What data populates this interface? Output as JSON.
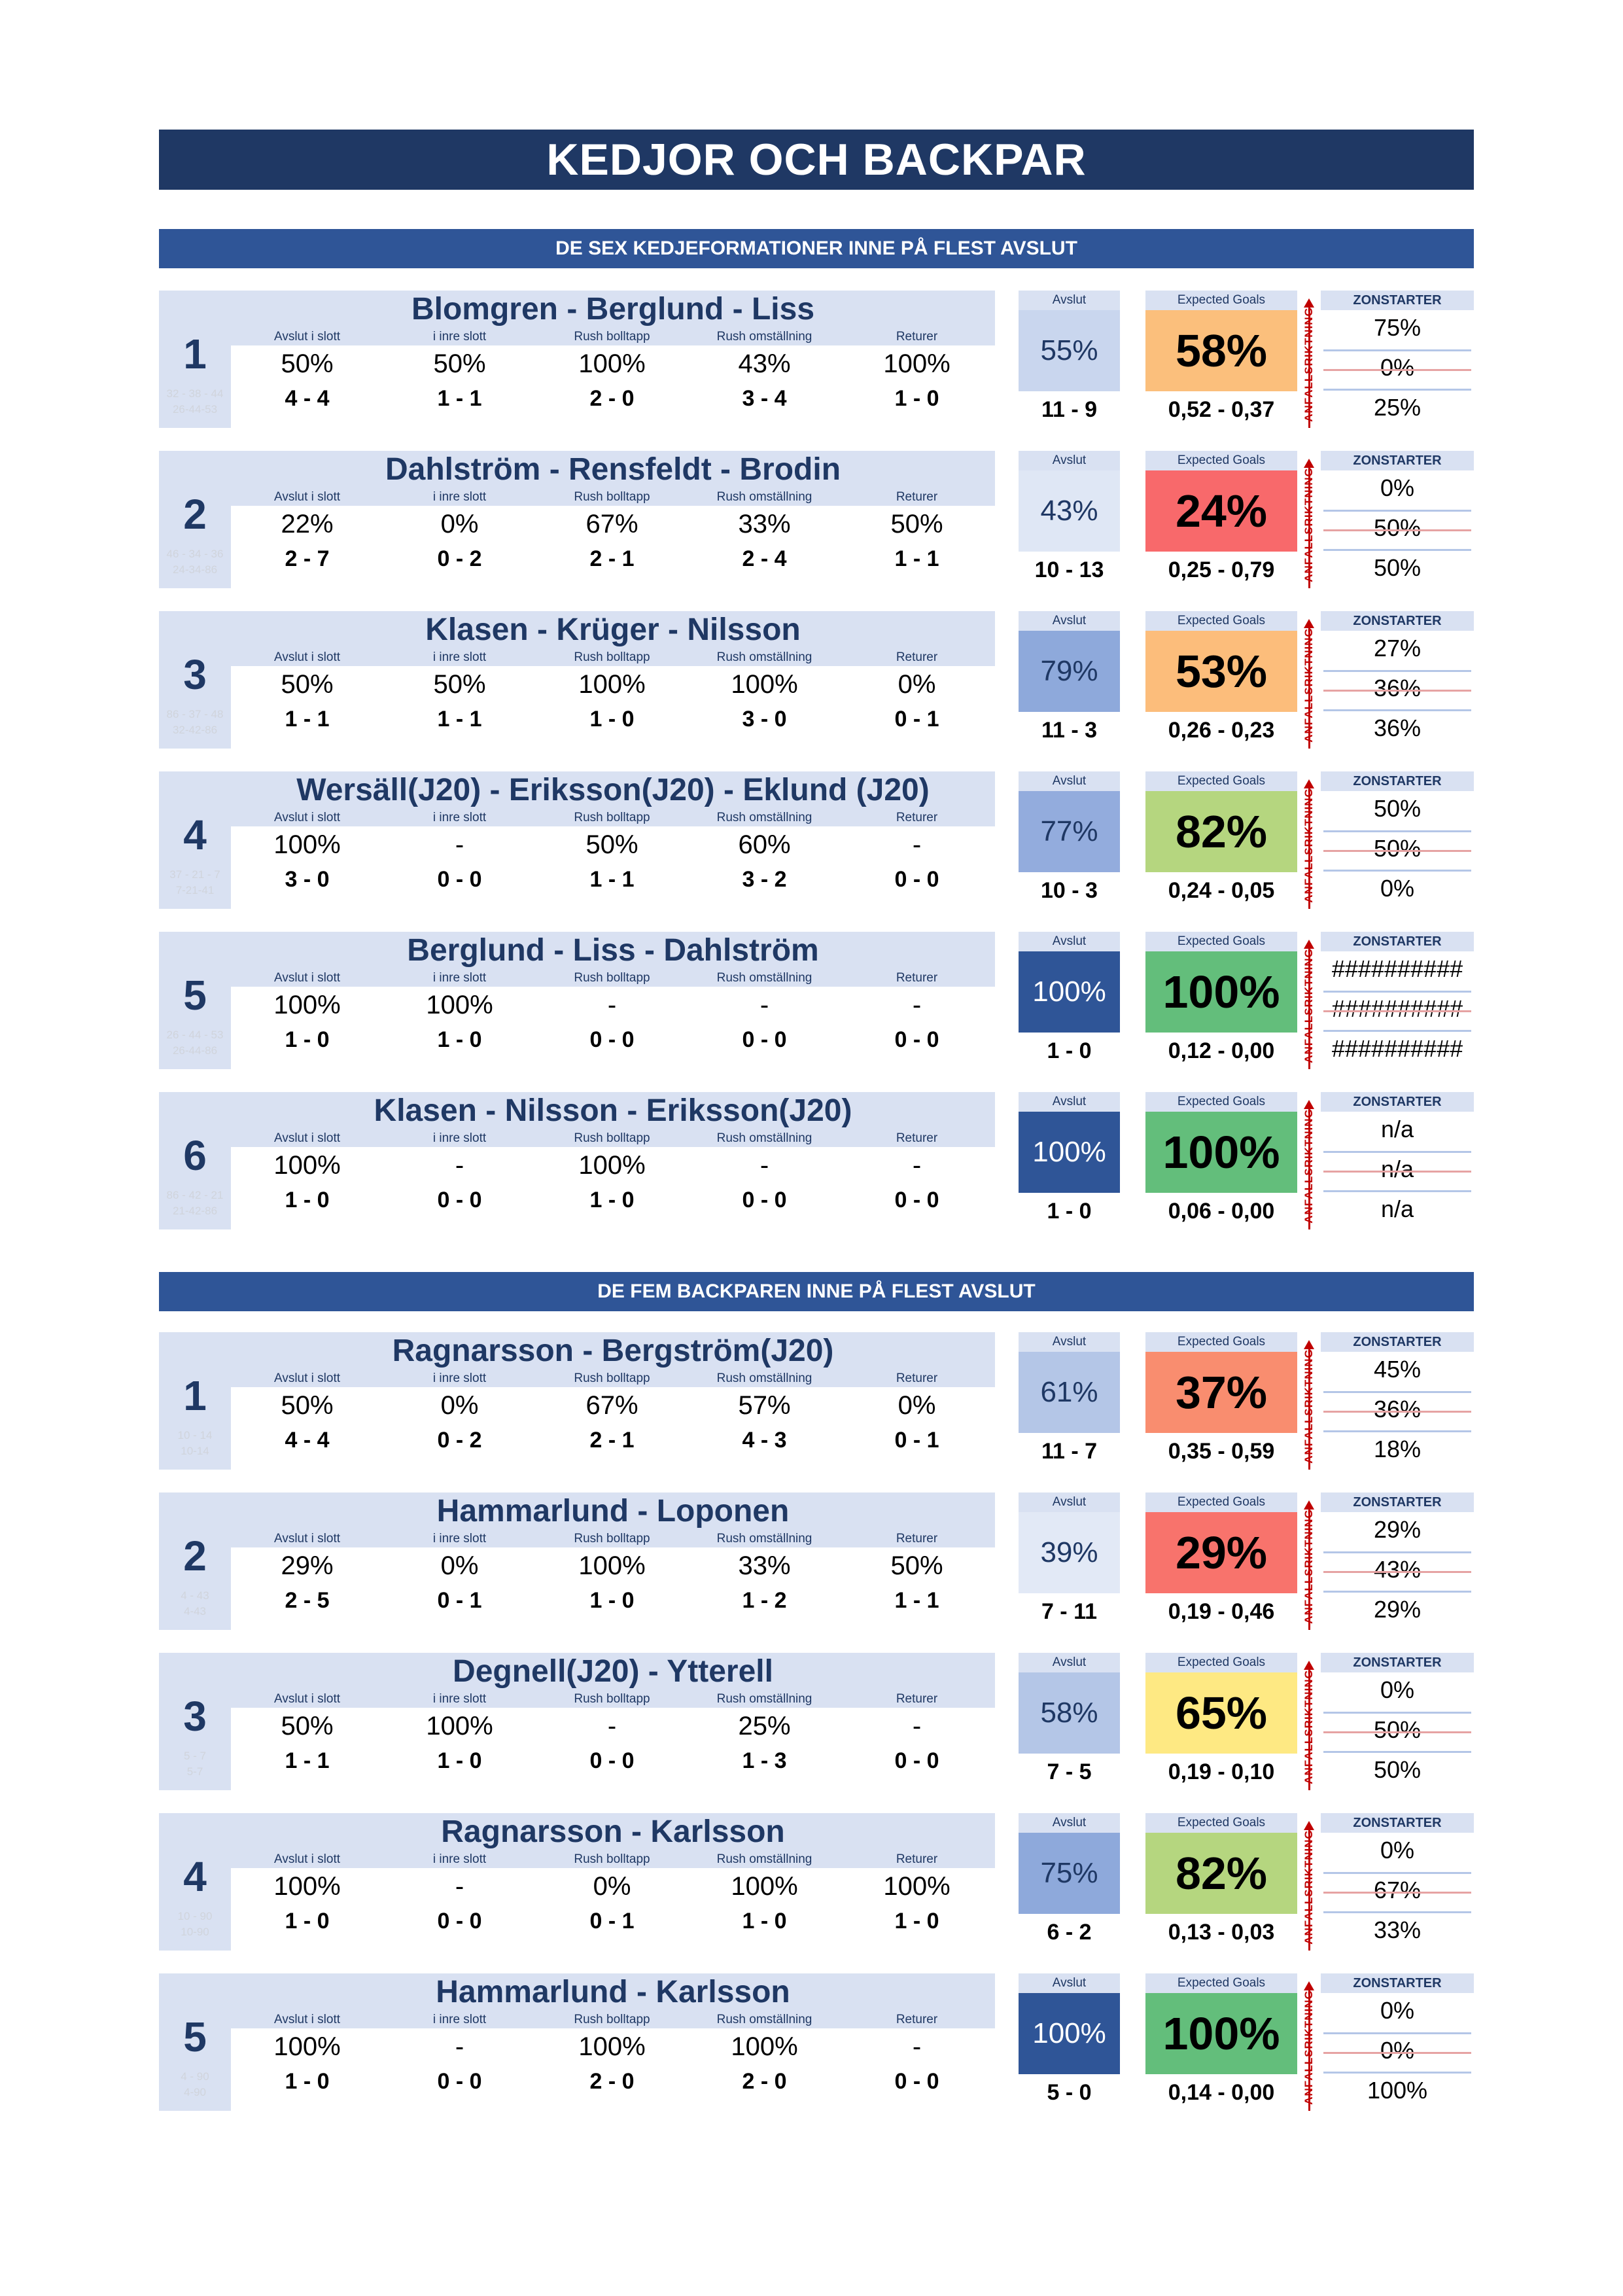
{
  "page": {
    "title": "KEDJOR OCH BACKPAR"
  },
  "sections": [
    {
      "heading": "DE SEX KEDJEFORMATIONER INNE PÅ FLEST AVSLUT",
      "rows": [
        {
          "rank": "1",
          "name": "Blomgren - Berglund - Liss",
          "faint1": "32 - 38 - 44",
          "faint2": "26-44-53",
          "stats": [
            [
              "Avslut i slott",
              "50%",
              "4 - 4"
            ],
            [
              "i inre slott",
              "50%",
              "1 - 1"
            ],
            [
              "Rush bolltapp",
              "100%",
              "2 - 0"
            ],
            [
              "Rush omställning",
              "43%",
              "3 - 4"
            ],
            [
              "Returer",
              "100%",
              "1 - 0"
            ]
          ],
          "avslut_label": "Avslut",
          "avslut_pct": "55%",
          "avslut_count": "11 - 9",
          "avslut_color": "#c9d6ee",
          "xg_label": "Expected Goals",
          "xg_pct": "58%",
          "xg_values": "0,52 - 0,37",
          "xg_color": "#fbbf7c",
          "dir_label": "ANFALLSRIKTNING",
          "zon_label": "ZONSTARTER",
          "zon": [
            "75%",
            "0%",
            "25%"
          ]
        },
        {
          "rank": "2",
          "name": "Dahlström - Rensfeldt - Brodin",
          "faint1": "46 - 34 - 36",
          "faint2": "24-34-86",
          "stats": [
            [
              "Avslut i slott",
              "22%",
              "2 - 7"
            ],
            [
              "i inre slott",
              "0%",
              "0 - 2"
            ],
            [
              "Rush bolltapp",
              "67%",
              "2 - 1"
            ],
            [
              "Rush omställning",
              "33%",
              "2 - 4"
            ],
            [
              "Returer",
              "50%",
              "1 - 1"
            ]
          ],
          "avslut_label": "Avslut",
          "avslut_pct": "43%",
          "avslut_count": "10 - 13",
          "avslut_color": "#dfe7f5",
          "xg_label": "Expected Goals",
          "xg_pct": "24%",
          "xg_values": "0,25 - 0,79",
          "xg_color": "#f8696b",
          "dir_label": "ANFALLSRIKTNING",
          "zon_label": "ZONSTARTER",
          "zon": [
            "0%",
            "50%",
            "50%"
          ]
        },
        {
          "rank": "3",
          "name": "Klasen - Krüger - Nilsson",
          "faint1": "86 - 37 - 48",
          "faint2": "32-42-86",
          "stats": [
            [
              "Avslut i slott",
              "50%",
              "1 - 1"
            ],
            [
              "i inre slott",
              "50%",
              "1 - 1"
            ],
            [
              "Rush bolltapp",
              "100%",
              "1 - 0"
            ],
            [
              "Rush omställning",
              "100%",
              "3 - 0"
            ],
            [
              "Returer",
              "0%",
              "0 - 1"
            ]
          ],
          "avslut_label": "Avslut",
          "avslut_pct": "79%",
          "avslut_count": "11 - 3",
          "avslut_color": "#8ea9db",
          "xg_label": "Expected Goals",
          "xg_pct": "53%",
          "xg_values": "0,26 - 0,23",
          "xg_color": "#fcbd7b",
          "dir_label": "ANFALLSRIKTNING",
          "zon_label": "ZONSTARTER",
          "zon": [
            "27%",
            "36%",
            "36%"
          ]
        },
        {
          "rank": "4",
          "name": "Wersäll(J20) - Eriksson(J20) - Eklund (J20)",
          "faint1": "37 - 21 - 7",
          "faint2": "7-21-41",
          "stats": [
            [
              "Avslut i slott",
              "100%",
              "3 - 0"
            ],
            [
              "i inre slott",
              "-",
              "0 - 0"
            ],
            [
              "Rush bolltapp",
              "50%",
              "1 - 1"
            ],
            [
              "Rush omställning",
              "60%",
              "3 - 2"
            ],
            [
              "Returer",
              "-",
              "0 - 0"
            ]
          ],
          "avslut_label": "Avslut",
          "avslut_pct": "77%",
          "avslut_count": "10 - 3",
          "avslut_color": "#93acdd",
          "xg_label": "Expected Goals",
          "xg_pct": "82%",
          "xg_values": "0,24 - 0,05",
          "xg_color": "#b5d67f",
          "dir_label": "ANFALLSRIKTNING",
          "zon_label": "ZONSTARTER",
          "zon": [
            "50%",
            "50%",
            "0%"
          ]
        },
        {
          "rank": "5",
          "name": "Berglund - Liss - Dahlström",
          "faint1": "26 - 44 - 53",
          "faint2": "26-44-86",
          "stats": [
            [
              "Avslut i slott",
              "100%",
              "1 - 0"
            ],
            [
              "i inre slott",
              "100%",
              "1 - 0"
            ],
            [
              "Rush bolltapp",
              "-",
              "0 - 0"
            ],
            [
              "Rush omställning",
              "-",
              "0 - 0"
            ],
            [
              "Returer",
              "-",
              "0 - 0"
            ]
          ],
          "avslut_label": "Avslut",
          "avslut_pct": "100%",
          "avslut_count": "1 - 0",
          "avslut_color": "#2f5597",
          "xg_label": "Expected Goals",
          "xg_pct": "100%",
          "xg_values": "0,12 - 0,00",
          "xg_color": "#63be7b",
          "dir_label": "ANFALLSRIKTNING",
          "zon_label": "ZONSTARTER",
          "zon": [
            "##########",
            "##########",
            "##########"
          ]
        },
        {
          "rank": "6",
          "name": "Klasen - Nilsson - Eriksson(J20)",
          "faint1": "86 - 42 - 21",
          "faint2": "21-42-86",
          "stats": [
            [
              "Avslut i slott",
              "100%",
              "1 - 0"
            ],
            [
              "i inre slott",
              "-",
              "0 - 0"
            ],
            [
              "Rush bolltapp",
              "100%",
              "1 - 0"
            ],
            [
              "Rush omställning",
              "-",
              "0 - 0"
            ],
            [
              "Returer",
              "-",
              "0 - 0"
            ]
          ],
          "avslut_label": "Avslut",
          "avslut_pct": "100%",
          "avslut_count": "1 - 0",
          "avslut_color": "#2f5597",
          "xg_label": "Expected Goals",
          "xg_pct": "100%",
          "xg_values": "0,06 - 0,00",
          "xg_color": "#63be7b",
          "dir_label": "ANFALLSRIKTNING",
          "zon_label": "ZONSTARTER",
          "zon": [
            "n/a",
            "n/a",
            "n/a"
          ]
        }
      ]
    },
    {
      "heading": "DE FEM BACKPAREN INNE PÅ FLEST AVSLUT",
      "rows": [
        {
          "rank": "1",
          "name": "Ragnarsson - Bergström(J20)",
          "faint1": "10 - 14",
          "faint2": "10-14",
          "stats": [
            [
              "Avslut i slott",
              "50%",
              "4 - 4"
            ],
            [
              "i inre slott",
              "0%",
              "0 - 2"
            ],
            [
              "Rush bolltapp",
              "67%",
              "2 - 1"
            ],
            [
              "Rush omställning",
              "57%",
              "4 - 3"
            ],
            [
              "Returer",
              "0%",
              "0 - 1"
            ]
          ],
          "avslut_label": "Avslut",
          "avslut_pct": "61%",
          "avslut_count": "11 - 7",
          "avslut_color": "#b4c6e7",
          "xg_label": "Expected Goals",
          "xg_pct": "37%",
          "xg_values": "0,35 - 0,59",
          "xg_color": "#f98d6f",
          "dir_label": "ANFALLSRIKTNING",
          "zon_label": "ZONSTARTER",
          "zon": [
            "45%",
            "36%",
            "18%"
          ]
        },
        {
          "rank": "2",
          "name": "Hammarlund - Loponen",
          "faint1": "4 - 43",
          "faint2": "4-43",
          "stats": [
            [
              "Avslut i slott",
              "29%",
              "2 - 5"
            ],
            [
              "i inre slott",
              "0%",
              "0 - 1"
            ],
            [
              "Rush bolltapp",
              "100%",
              "1 - 0"
            ],
            [
              "Rush omställning",
              "33%",
              "1 - 2"
            ],
            [
              "Returer",
              "50%",
              "1 - 1"
            ]
          ],
          "avslut_label": "Avslut",
          "avslut_pct": "39%",
          "avslut_count": "7 - 11",
          "avslut_color": "#e2e9f6",
          "xg_label": "Expected Goals",
          "xg_pct": "29%",
          "xg_values": "0,19 - 0,46",
          "xg_color": "#f8736c",
          "dir_label": "ANFALLSRIKTNING",
          "zon_label": "ZONSTARTER",
          "zon": [
            "29%",
            "43%",
            "29%"
          ]
        },
        {
          "rank": "3",
          "name": "Degnell(J20) - Ytterell",
          "faint1": "5 - 7",
          "faint2": "5-7",
          "stats": [
            [
              "Avslut i slott",
              "50%",
              "1 - 1"
            ],
            [
              "i inre slott",
              "100%",
              "1 - 0"
            ],
            [
              "Rush bolltapp",
              "-",
              "0 - 0"
            ],
            [
              "Rush omställning",
              "25%",
              "1 - 3"
            ],
            [
              "Returer",
              "-",
              "0 - 0"
            ]
          ],
          "avslut_label": "Avslut",
          "avslut_pct": "58%",
          "avslut_count": "7 - 5",
          "avslut_color": "#b4c6e7",
          "xg_label": "Expected Goals",
          "xg_pct": "65%",
          "xg_values": "0,19 - 0,10",
          "xg_color": "#fee983",
          "dir_label": "ANFALLSRIKTNING",
          "zon_label": "ZONSTARTER",
          "zon": [
            "0%",
            "50%",
            "50%"
          ]
        },
        {
          "rank": "4",
          "name": "Ragnarsson - Karlsson",
          "faint1": "10 - 90",
          "faint2": "10-90",
          "stats": [
            [
              "Avslut i slott",
              "100%",
              "1 - 0"
            ],
            [
              "i inre slott",
              "-",
              "0 - 0"
            ],
            [
              "Rush bolltapp",
              "0%",
              "0 - 1"
            ],
            [
              "Rush omställning",
              "100%",
              "1 - 0"
            ],
            [
              "Returer",
              "100%",
              "1 - 0"
            ]
          ],
          "avslut_label": "Avslut",
          "avslut_pct": "75%",
          "avslut_count": "6 - 2",
          "avslut_color": "#8ea9db",
          "xg_label": "Expected Goals",
          "xg_pct": "82%",
          "xg_values": "0,13 - 0,03",
          "xg_color": "#b5d67f",
          "dir_label": "ANFALLSRIKTNING",
          "zon_label": "ZONSTARTER",
          "zon": [
            "0%",
            "67%",
            "33%"
          ]
        },
        {
          "rank": "5",
          "name": "Hammarlund - Karlsson",
          "faint1": "4 - 90",
          "faint2": "4-90",
          "stats": [
            [
              "Avslut i slott",
              "100%",
              "1 - 0"
            ],
            [
              "i inre slott",
              "-",
              "0 - 0"
            ],
            [
              "Rush bolltapp",
              "100%",
              "2 - 0"
            ],
            [
              "Rush omställning",
              "100%",
              "2 - 0"
            ],
            [
              "Returer",
              "-",
              "0 - 0"
            ]
          ],
          "avslut_label": "Avslut",
          "avslut_pct": "100%",
          "avslut_count": "5 - 0",
          "avslut_color": "#2f5597",
          "xg_label": "Expected Goals",
          "xg_pct": "100%",
          "xg_values": "0,14 - 0,00",
          "xg_color": "#63be7b",
          "dir_label": "ANFALLSRIKTNING",
          "zon_label": "ZONSTARTER",
          "zon": [
            "0%",
            "0%",
            "100%"
          ]
        }
      ]
    }
  ]
}
